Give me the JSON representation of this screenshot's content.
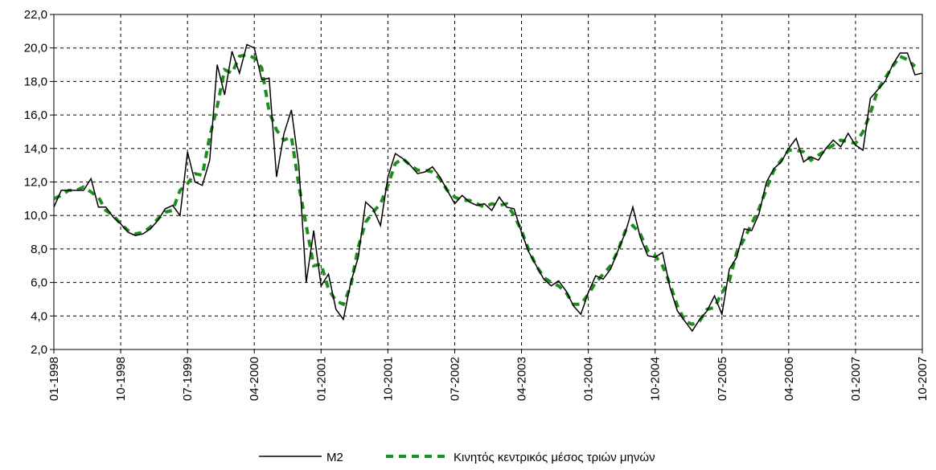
{
  "chart_data": {
    "type": "line",
    "categories": [
      "01-1998",
      null,
      null,
      null,
      null,
      null,
      null,
      null,
      null,
      "10-1998",
      null,
      null,
      null,
      null,
      null,
      null,
      null,
      null,
      "07-1999",
      null,
      null,
      null,
      null,
      null,
      null,
      null,
      null,
      "04-2000",
      null,
      null,
      null,
      null,
      null,
      null,
      null,
      null,
      "01-2001",
      null,
      null,
      null,
      null,
      null,
      null,
      null,
      null,
      "10-2001",
      null,
      null,
      null,
      null,
      null,
      null,
      null,
      null,
      "07-2002",
      null,
      null,
      null,
      null,
      null,
      null,
      null,
      null,
      "04-2003",
      null,
      null,
      null,
      null,
      null,
      null,
      null,
      null,
      "01-2004",
      null,
      null,
      null,
      null,
      null,
      null,
      null,
      null,
      "10-2004",
      null,
      null,
      null,
      null,
      null,
      null,
      null,
      null,
      "07-2005",
      null,
      null,
      null,
      null,
      null,
      null,
      null,
      null,
      "04-2006",
      null,
      null,
      null,
      null,
      null,
      null,
      null,
      null,
      "01-2007",
      null,
      null,
      null,
      null,
      null,
      null,
      null,
      null,
      "10-2007"
    ],
    "series": [
      {
        "name": "M2",
        "color": "#000000",
        "dash": false,
        "values": [
          10.5,
          11.5,
          11.5,
          11.5,
          11.5,
          12.2,
          10.5,
          10.5,
          9.9,
          9.5,
          9.0,
          8.8,
          8.9,
          9.2,
          9.7,
          10.4,
          10.6,
          10.0,
          13.8,
          12.0,
          11.8,
          13.3,
          19.0,
          17.2,
          19.8,
          18.5,
          20.2,
          20.0,
          18.1,
          18.2,
          12.3,
          14.9,
          16.3,
          13.0,
          6.0,
          9.1,
          5.8,
          6.5,
          4.4,
          3.8,
          6.0,
          7.5,
          10.8,
          10.4,
          9.4,
          12.3,
          13.7,
          13.4,
          13.0,
          12.5,
          12.6,
          12.9,
          12.3,
          11.5,
          10.7,
          11.2,
          10.8,
          10.6,
          10.7,
          10.3,
          11.1,
          10.5,
          10.4,
          9.0,
          7.8,
          7.0,
          6.2,
          5.8,
          6.1,
          5.5,
          4.6,
          4.1,
          5.4,
          6.4,
          6.2,
          6.8,
          7.9,
          9.0,
          10.5,
          8.7,
          7.6,
          7.5,
          7.8,
          5.7,
          4.3,
          3.7,
          3.1,
          3.8,
          4.3,
          5.2,
          4.1,
          6.8,
          7.5,
          9.2,
          9.1,
          10.1,
          12.0,
          12.8,
          13.2,
          14.0,
          14.6,
          13.2,
          13.5,
          13.3,
          14.0,
          14.5,
          14.1,
          14.9,
          14.2,
          13.9,
          17.0,
          17.5,
          18.0,
          19.0,
          19.7,
          19.7,
          18.4,
          18.5
        ]
      },
      {
        "name": "Κινητός κεντρικός μέσος τριών μηνών",
        "color": "#1f8c1f",
        "dash": true,
        "values": [
          11.0,
          11.2,
          11.5,
          11.5,
          11.7,
          11.4,
          11.1,
          10.3,
          10.0,
          9.5,
          9.1,
          8.9,
          9.0,
          9.3,
          9.8,
          10.2,
          10.3,
          11.5,
          11.9,
          12.5,
          12.4,
          14.7,
          16.5,
          18.7,
          18.5,
          19.5,
          19.6,
          19.4,
          18.8,
          16.2,
          15.1,
          14.5,
          14.7,
          11.8,
          9.4,
          7.0,
          7.1,
          5.6,
          4.9,
          4.7,
          5.8,
          8.1,
          9.6,
          10.2,
          10.7,
          11.8,
          13.1,
          13.4,
          13.0,
          12.7,
          12.7,
          12.6,
          12.2,
          11.5,
          11.1,
          10.9,
          10.9,
          10.7,
          10.5,
          10.7,
          10.6,
          10.7,
          10.0,
          9.1,
          7.9,
          7.0,
          6.3,
          6.0,
          5.8,
          5.4,
          4.7,
          4.7,
          5.3,
          6.0,
          6.5,
          7.0,
          7.9,
          9.1,
          9.4,
          8.9,
          7.9,
          7.6,
          7.0,
          5.9,
          4.6,
          3.7,
          3.5,
          3.7,
          4.4,
          4.5,
          5.4,
          6.1,
          7.8,
          8.6,
          9.5,
          10.4,
          11.6,
          12.7,
          13.3,
          13.9,
          13.9,
          13.8,
          13.3,
          13.6,
          13.9,
          14.2,
          14.5,
          14.4,
          14.3,
          15.0,
          16.1,
          17.5,
          18.2,
          18.9,
          19.5,
          19.3,
          18.9,
          null
        ]
      }
    ],
    "ylim": [
      2,
      22
    ],
    "yticks": [
      {
        "value": 2,
        "label": "2,0"
      },
      {
        "value": 4,
        "label": "4,0"
      },
      {
        "value": 6,
        "label": "6,0"
      },
      {
        "value": 8,
        "label": "8,0"
      },
      {
        "value": 10,
        "label": "10,0"
      },
      {
        "value": 12,
        "label": "12,0"
      },
      {
        "value": 14,
        "label": "14,0"
      },
      {
        "value": 16,
        "label": "16,0"
      },
      {
        "value": 18,
        "label": "18,0"
      },
      {
        "value": 20,
        "label": "20,0"
      },
      {
        "value": 22,
        "label": "22,0"
      }
    ],
    "grid": true,
    "legend": "bottom"
  }
}
